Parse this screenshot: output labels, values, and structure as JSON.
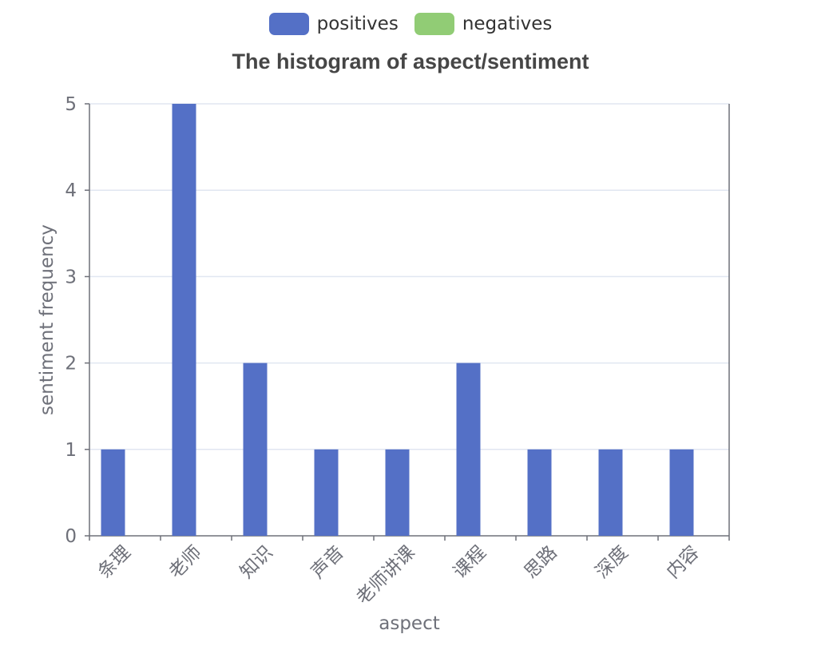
{
  "chart_data": {
    "type": "bar",
    "title": "The histogram of aspect/sentiment",
    "xlabel": "aspect",
    "ylabel": "sentiment frequency",
    "categories": [
      "条理",
      "老师",
      "知识",
      "声音",
      "老师讲课",
      "课程",
      "思路",
      "深度",
      "内容"
    ],
    "series": [
      {
        "name": "positives",
        "color": "#5470c6",
        "values": [
          1,
          5,
          2,
          1,
          1,
          2,
          1,
          1,
          1
        ]
      },
      {
        "name": "negatives",
        "color": "#91cc75",
        "values": [
          0,
          0,
          0,
          0,
          0,
          0,
          0,
          0,
          0
        ]
      }
    ],
    "ylim": [
      0,
      5
    ],
    "yticks": [
      "0",
      "1",
      "2",
      "3",
      "4",
      "5"
    ],
    "grid": true,
    "legend_position": "top-center"
  }
}
